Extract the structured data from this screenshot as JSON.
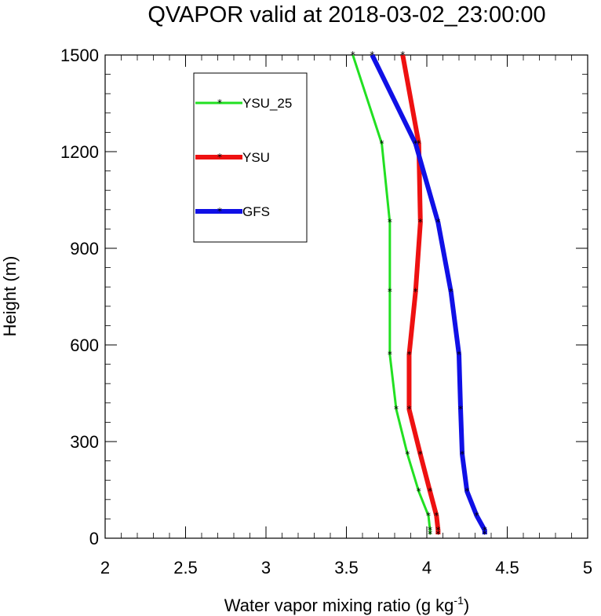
{
  "chart_data": {
    "type": "line",
    "title": "QVAPOR valid at 2018-03-02_23:00:00",
    "xlabel": "Water vapor mixing ratio (g kg",
    "xlabel_sup": "-1",
    "xlabel_end": ")",
    "ylabel": "Height (m)",
    "xlim": [
      2,
      5
    ],
    "ylim": [
      0,
      1500
    ],
    "xticks": [
      2,
      2.5,
      3,
      3.5,
      4,
      4.5,
      5
    ],
    "xtick_labels": [
      "2",
      "2.5",
      "3",
      "3.5",
      "4",
      "4.5",
      "5"
    ],
    "yticks": [
      0,
      300,
      600,
      900,
      1200,
      1500
    ],
    "ytick_labels": [
      "0",
      "300",
      "600",
      "900",
      "1200",
      "1500"
    ],
    "grid": false,
    "legend_position": "top-left",
    "series": [
      {
        "name": "YSU_25",
        "color": "#22e022",
        "width": 3,
        "x": [
          4.02,
          4.02,
          4.01,
          3.95,
          3.88,
          3.81,
          3.77,
          3.77,
          3.77,
          3.72,
          3.54
        ],
        "y": [
          12,
          25,
          70,
          145,
          260,
          400,
          570,
          765,
          980,
          1225,
          1500
        ]
      },
      {
        "name": "YSU",
        "color": "#ee1111",
        "width": 6,
        "x": [
          4.07,
          4.07,
          4.06,
          4.02,
          3.96,
          3.89,
          3.89,
          3.93,
          3.96,
          3.95,
          3.85
        ],
        "y": [
          12,
          25,
          70,
          145,
          260,
          400,
          570,
          765,
          980,
          1225,
          1500
        ]
      },
      {
        "name": "GFS",
        "color": "#1010e6",
        "width": 6,
        "x": [
          4.36,
          4.36,
          4.31,
          4.25,
          4.22,
          4.21,
          4.2,
          4.15,
          4.07,
          3.93,
          3.66
        ],
        "y": [
          12,
          25,
          70,
          145,
          260,
          400,
          570,
          765,
          980,
          1225,
          1500
        ]
      }
    ]
  }
}
